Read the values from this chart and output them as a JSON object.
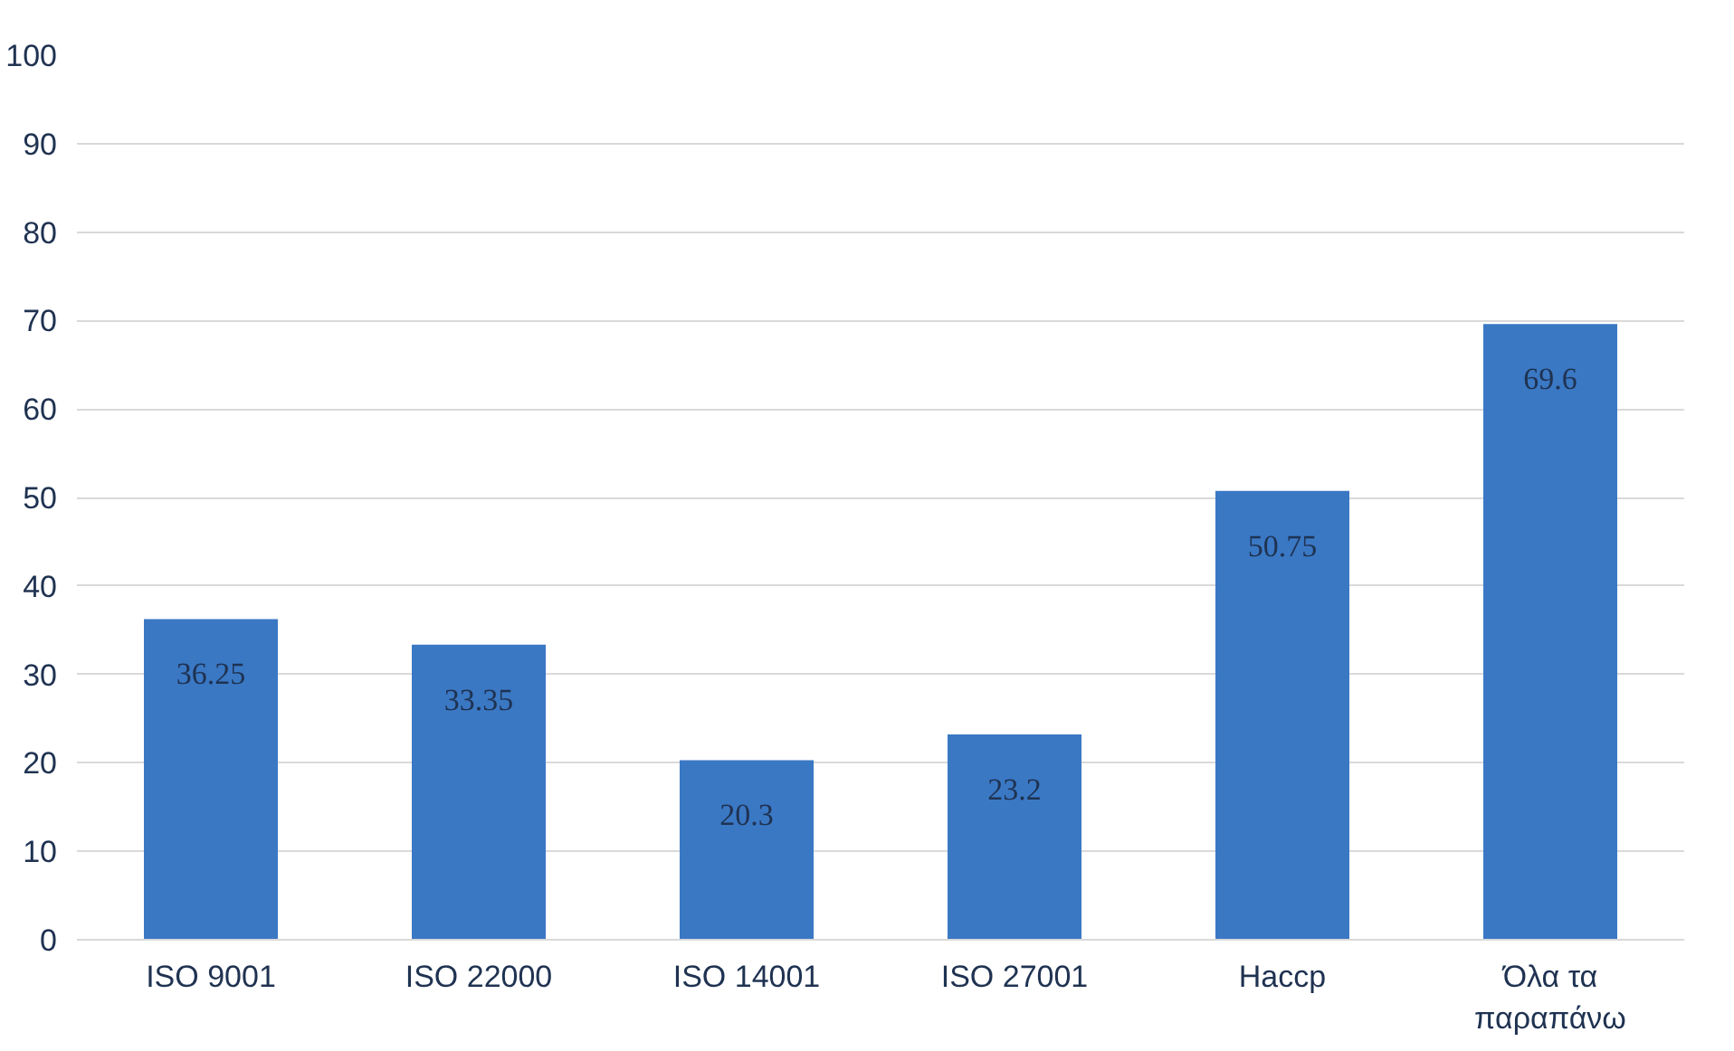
{
  "chart_data": {
    "type": "bar",
    "categories": [
      "ISO 9001",
      "ISO 22000",
      "ISO 14001",
      "ISO 27001",
      "Haccp",
      "Όλα τα παραπάνω"
    ],
    "values": [
      36.25,
      33.35,
      20.3,
      23.2,
      50.75,
      69.6
    ],
    "color": "#3a78c4",
    "ylim": [
      0,
      100
    ],
    "yticks": [
      0,
      10,
      20,
      30,
      40,
      50,
      60,
      70,
      80,
      90,
      100
    ],
    "grid": "y",
    "data_labels": true
  }
}
